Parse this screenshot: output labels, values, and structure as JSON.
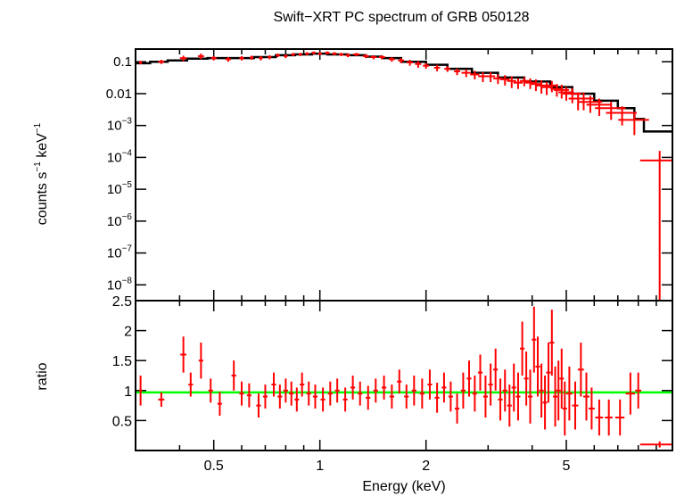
{
  "colors": {
    "data": "#ff0000",
    "model": "#000000",
    "ratio_line": "#00ff00",
    "axis": "#000000"
  },
  "chart_data": [
    {
      "type": "scatter",
      "title": "Swift−XRT PC spectrum of GRB 050128",
      "ylabel_parts": [
        "counts s",
        "−1",
        " keV",
        "−1"
      ],
      "xlabel": "Energy (keV)",
      "x_scale": "log",
      "y_scale": "log",
      "xlim": [
        0.3,
        10
      ],
      "ylim": [
        3.2e-09,
        0.25
      ],
      "y_ticks": [
        {
          "value": 0.1,
          "label": "0.1",
          "exp": ""
        },
        {
          "value": 0.01,
          "label": "0.01",
          "exp": ""
        },
        {
          "value": 0.001,
          "label": "10",
          "exp": "−3"
        },
        {
          "value": 0.0001,
          "label": "10",
          "exp": "−4"
        },
        {
          "value": 1e-05,
          "label": "10",
          "exp": "−5"
        },
        {
          "value": 1e-06,
          "label": "10",
          "exp": "−6"
        },
        {
          "value": 1e-07,
          "label": "10",
          "exp": "−7"
        },
        {
          "value": 1e-08,
          "label": "10",
          "exp": "−8"
        }
      ],
      "series": [
        {
          "kind": "data",
          "points": [
            [
              0.31,
              0.095,
              0.01,
              0.012
            ],
            [
              0.355,
              0.1,
              0.02,
              0.015
            ],
            [
              0.41,
              0.13,
              0.022,
              0.025
            ],
            [
              0.46,
              0.15,
              0.02,
              0.03
            ],
            [
              0.5,
              0.13,
              0.018,
              0.02
            ],
            [
              0.55,
              0.12,
              0.018,
              0.02
            ],
            [
              0.6,
              0.13,
              0.015,
              0.02
            ],
            [
              0.64,
              0.135,
              0.012,
              0.02
            ],
            [
              0.68,
              0.13,
              0.012,
              0.02
            ],
            [
              0.72,
              0.14,
              0.012,
              0.02
            ],
            [
              0.76,
              0.16,
              0.012,
              0.02
            ],
            [
              0.8,
              0.15,
              0.012,
              0.02
            ],
            [
              0.84,
              0.17,
              0.012,
              0.02
            ],
            [
              0.88,
              0.17,
              0.012,
              0.02
            ],
            [
              0.92,
              0.18,
              0.012,
              0.02
            ],
            [
              0.96,
              0.19,
              0.012,
              0.02
            ],
            [
              1.0,
              0.18,
              0.012,
              0.02
            ],
            [
              1.05,
              0.19,
              0.015,
              0.02
            ],
            [
              1.1,
              0.18,
              0.015,
              0.02
            ],
            [
              1.15,
              0.17,
              0.015,
              0.02
            ],
            [
              1.2,
              0.16,
              0.015,
              0.02
            ],
            [
              1.27,
              0.17,
              0.02,
              0.02
            ],
            [
              1.35,
              0.15,
              0.02,
              0.02
            ],
            [
              1.42,
              0.14,
              0.02,
              0.02
            ],
            [
              1.5,
              0.14,
              0.02,
              0.02
            ],
            [
              1.6,
              0.12,
              0.02,
              0.02
            ],
            [
              1.7,
              0.11,
              0.02,
              0.02
            ],
            [
              1.8,
              0.095,
              0.02,
              0.02
            ],
            [
              1.9,
              0.085,
              0.02,
              0.02
            ],
            [
              2.0,
              0.075,
              0.02,
              0.015
            ],
            [
              2.15,
              0.065,
              0.02,
              0.015
            ],
            [
              2.3,
              0.06,
              0.02,
              0.012
            ],
            [
              2.45,
              0.05,
              0.02,
              0.012
            ],
            [
              2.6,
              0.045,
              0.03,
              0.012
            ],
            [
              2.75,
              0.04,
              0.03,
              0.012
            ],
            [
              2.9,
              0.035,
              0.03,
              0.012
            ],
            [
              3.05,
              0.035,
              0.03,
              0.012
            ],
            [
              3.2,
              0.03,
              0.03,
              0.01
            ],
            [
              3.35,
              0.028,
              0.03,
              0.01
            ],
            [
              3.5,
              0.025,
              0.03,
              0.01
            ],
            [
              3.65,
              0.022,
              0.03,
              0.008
            ],
            [
              3.8,
              0.025,
              0.03,
              0.008
            ],
            [
              3.95,
              0.022,
              0.03,
              0.008
            ],
            [
              4.1,
              0.02,
              0.03,
              0.008
            ],
            [
              4.25,
              0.018,
              0.04,
              0.008
            ],
            [
              4.4,
              0.016,
              0.04,
              0.007
            ],
            [
              4.55,
              0.018,
              0.04,
              0.007
            ],
            [
              4.7,
              0.014,
              0.04,
              0.006
            ],
            [
              4.85,
              0.013,
              0.05,
              0.006
            ],
            [
              5.0,
              0.011,
              0.05,
              0.005
            ],
            [
              5.2,
              0.01,
              0.06,
              0.005
            ],
            [
              5.4,
              0.007,
              0.06,
              0.004
            ],
            [
              5.6,
              0.007,
              0.07,
              0.004
            ],
            [
              5.85,
              0.0055,
              0.08,
              0.003
            ],
            [
              6.2,
              0.0045,
              0.08,
              0.0025
            ],
            [
              6.7,
              0.0035,
              0.1,
              0.002
            ],
            [
              7.2,
              0.0025,
              0.1,
              0.0015
            ],
            [
              7.8,
              0.0015,
              0.1,
              0.001
            ],
            [
              9.2,
              8e-05,
              0.12,
              8e-05
            ]
          ]
        },
        {
          "kind": "model",
          "steps": [
            [
              0.3,
              0.09
            ],
            [
              0.33,
              0.1
            ],
            [
              0.37,
              0.11
            ],
            [
              0.42,
              0.125
            ],
            [
              0.48,
              0.13
            ],
            [
              0.55,
              0.13
            ],
            [
              0.65,
              0.14
            ],
            [
              0.75,
              0.16
            ],
            [
              0.85,
              0.17
            ],
            [
              0.95,
              0.18
            ],
            [
              1.05,
              0.17
            ],
            [
              1.2,
              0.16
            ],
            [
              1.35,
              0.145
            ],
            [
              1.5,
              0.13
            ],
            [
              1.7,
              0.1
            ],
            [
              2.0,
              0.08
            ],
            [
              2.3,
              0.06
            ],
            [
              2.7,
              0.045
            ],
            [
              3.2,
              0.032
            ],
            [
              3.8,
              0.024
            ],
            [
              4.5,
              0.016
            ],
            [
              5.2,
              0.01
            ],
            [
              6.0,
              0.006
            ],
            [
              7.0,
              0.0035
            ],
            [
              7.8,
              0.0016
            ],
            [
              8.3,
              0.00065
            ],
            [
              10.0,
              0.00065
            ]
          ]
        }
      ]
    },
    {
      "type": "scatter",
      "ylabel": "ratio",
      "xlabel": "Energy (keV)",
      "x_scale": "log",
      "xlim": [
        0.3,
        10
      ],
      "ylim": [
        0,
        2.5
      ],
      "x_ticks": [
        {
          "value": 0.5,
          "label": "0.5"
        },
        {
          "value": 1,
          "label": "1"
        },
        {
          "value": 2,
          "label": "2"
        },
        {
          "value": 5,
          "label": "5"
        }
      ],
      "y_ticks": [
        {
          "value": 2.5,
          "label": "2.5"
        },
        {
          "value": 2,
          "label": "2"
        },
        {
          "value": 1.5,
          "label": "1.5"
        },
        {
          "value": 1,
          "label": "1"
        },
        {
          "value": 0.5,
          "label": "0.5"
        }
      ],
      "reference_line": 0.97,
      "series": [
        {
          "kind": "ratio",
          "points": [
            [
              0.31,
              1.0,
              0.01,
              0.25
            ],
            [
              0.355,
              0.85,
              0.02,
              0.12
            ],
            [
              0.41,
              1.6,
              0.02,
              0.3
            ],
            [
              0.43,
              1.1,
              0.015,
              0.2
            ],
            [
              0.46,
              1.5,
              0.015,
              0.3
            ],
            [
              0.49,
              1.0,
              0.015,
              0.2
            ],
            [
              0.52,
              0.78,
              0.015,
              0.2
            ],
            [
              0.57,
              1.25,
              0.015,
              0.25
            ],
            [
              0.6,
              0.95,
              0.015,
              0.2
            ],
            [
              0.63,
              0.92,
              0.015,
              0.2
            ],
            [
              0.67,
              0.75,
              0.015,
              0.2
            ],
            [
              0.7,
              0.9,
              0.015,
              0.2
            ],
            [
              0.74,
              1.1,
              0.015,
              0.2
            ],
            [
              0.77,
              0.9,
              0.015,
              0.2
            ],
            [
              0.8,
              1.0,
              0.015,
              0.2
            ],
            [
              0.83,
              0.95,
              0.015,
              0.2
            ],
            [
              0.86,
              0.85,
              0.015,
              0.2
            ],
            [
              0.89,
              1.1,
              0.015,
              0.2
            ],
            [
              0.93,
              0.95,
              0.015,
              0.2
            ],
            [
              0.97,
              0.9,
              0.015,
              0.2
            ],
            [
              1.02,
              0.85,
              0.015,
              0.2
            ],
            [
              1.07,
              0.95,
              0.015,
              0.2
            ],
            [
              1.12,
              1.0,
              0.015,
              0.2
            ],
            [
              1.18,
              0.85,
              0.015,
              0.2
            ],
            [
              1.24,
              1.05,
              0.015,
              0.2
            ],
            [
              1.3,
              0.95,
              0.015,
              0.2
            ],
            [
              1.37,
              0.88,
              0.015,
              0.2
            ],
            [
              1.44,
              1.0,
              0.015,
              0.2
            ],
            [
              1.52,
              1.05,
              0.015,
              0.2
            ],
            [
              1.6,
              0.9,
              0.015,
              0.2
            ],
            [
              1.68,
              1.15,
              0.015,
              0.2
            ],
            [
              1.76,
              0.9,
              0.015,
              0.2
            ],
            [
              1.85,
              1.0,
              0.015,
              0.25
            ],
            [
              1.95,
              0.95,
              0.015,
              0.25
            ],
            [
              2.05,
              1.1,
              0.015,
              0.25
            ],
            [
              2.15,
              0.88,
              0.015,
              0.25
            ],
            [
              2.25,
              1.05,
              0.015,
              0.25
            ],
            [
              2.35,
              0.9,
              0.015,
              0.25
            ],
            [
              2.45,
              0.7,
              0.015,
              0.25
            ],
            [
              2.55,
              1.0,
              0.015,
              0.3
            ],
            [
              2.65,
              1.2,
              0.015,
              0.3
            ],
            [
              2.75,
              0.95,
              0.015,
              0.3
            ],
            [
              2.85,
              1.3,
              0.015,
              0.3
            ],
            [
              2.95,
              0.9,
              0.015,
              0.35
            ],
            [
              3.05,
              1.1,
              0.015,
              0.35
            ],
            [
              3.15,
              1.35,
              0.015,
              0.35
            ],
            [
              3.25,
              0.85,
              0.015,
              0.35
            ],
            [
              3.35,
              1.0,
              0.015,
              0.35
            ],
            [
              3.45,
              0.75,
              0.015,
              0.35
            ],
            [
              3.55,
              1.05,
              0.015,
              0.4
            ],
            [
              3.65,
              0.9,
              0.015,
              0.4
            ],
            [
              3.75,
              1.7,
              0.015,
              0.45
            ],
            [
              3.85,
              1.2,
              0.015,
              0.45
            ],
            [
              3.95,
              0.9,
              0.015,
              0.45
            ],
            [
              4.05,
              1.85,
              0.015,
              0.55
            ],
            [
              4.15,
              1.4,
              0.015,
              0.5
            ],
            [
              4.25,
              1.0,
              0.015,
              0.45
            ],
            [
              4.35,
              0.8,
              0.015,
              0.45
            ],
            [
              4.45,
              1.3,
              0.015,
              0.5
            ],
            [
              4.55,
              1.8,
              0.015,
              0.55
            ],
            [
              4.65,
              0.9,
              0.015,
              0.5
            ],
            [
              4.75,
              1.0,
              0.015,
              0.5
            ],
            [
              4.85,
              1.2,
              0.015,
              0.5
            ],
            [
              4.95,
              0.7,
              0.015,
              0.45
            ],
            [
              5.1,
              0.95,
              0.02,
              0.45
            ],
            [
              5.3,
              0.75,
              0.02,
              0.4
            ],
            [
              5.5,
              1.35,
              0.02,
              0.45
            ],
            [
              5.7,
              0.9,
              0.02,
              0.4
            ],
            [
              5.9,
              0.7,
              0.02,
              0.35
            ],
            [
              6.2,
              0.55,
              0.025,
              0.3
            ],
            [
              6.6,
              0.55,
              0.025,
              0.3
            ],
            [
              7.1,
              0.55,
              0.03,
              0.3
            ],
            [
              7.6,
              0.95,
              0.03,
              0.35
            ],
            [
              8.0,
              1.0,
              0.02,
              0.3
            ],
            [
              9.2,
              0.1,
              0.12,
              0.05
            ]
          ]
        }
      ]
    }
  ]
}
